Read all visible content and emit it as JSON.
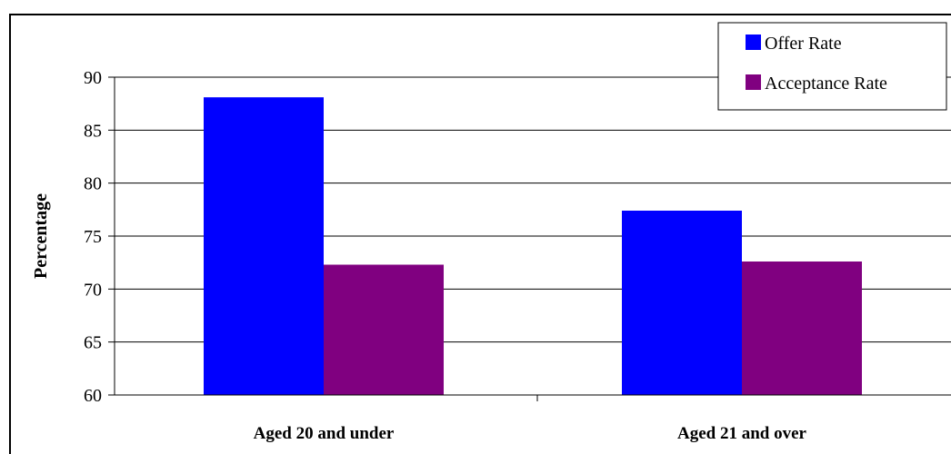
{
  "chart_data": {
    "type": "bar",
    "categories": [
      "Aged 20 and under",
      "Aged 21 and over"
    ],
    "series": [
      {
        "name": "Offer Rate",
        "color": "#0000ff",
        "values": [
          88.1,
          77.4
        ]
      },
      {
        "name": "Acceptance Rate",
        "color": "#800080",
        "values": [
          72.3,
          72.6
        ]
      }
    ],
    "title": "",
    "xlabel": "",
    "ylabel": "Percentage",
    "ylim": [
      60,
      90
    ],
    "yticks": [
      60,
      65,
      70,
      75,
      80,
      85,
      90
    ],
    "grid": true,
    "legend_position": "top-right"
  }
}
